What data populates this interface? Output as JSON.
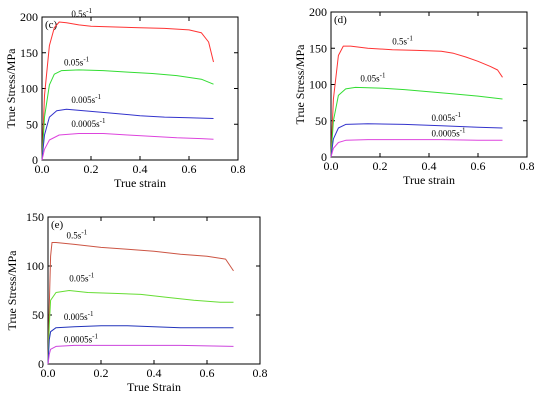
{
  "chart_data": [
    {
      "panel_label": "(c)",
      "type": "line",
      "xlabel": "True strain",
      "ylabel": "True Stress/MPa",
      "xlim": [
        0,
        0.8
      ],
      "ylim": [
        0,
        200
      ],
      "xticks": [
        0.0,
        0.2,
        0.4,
        0.6,
        0.8
      ],
      "yticks": [
        0,
        50,
        100,
        150,
        200
      ],
      "xtick_labels": [
        "0.0",
        "0.2",
        "0.4",
        "0.6",
        "0.8"
      ],
      "ytick_labels": [
        "0",
        "50",
        "100",
        "150",
        "200"
      ],
      "series": [
        {
          "name": "0.5s-1",
          "label_text": "0.5s",
          "label_sup": "-1",
          "label_at": [
            0.12,
            200
          ],
          "color": "#ff3333",
          "points": [
            [
              0.0,
              0
            ],
            [
              0.01,
              90
            ],
            [
              0.03,
              160
            ],
            [
              0.05,
              185
            ],
            [
              0.07,
              193
            ],
            [
              0.1,
              192
            ],
            [
              0.15,
              189
            ],
            [
              0.2,
              187
            ],
            [
              0.3,
              186
            ],
            [
              0.4,
              185
            ],
            [
              0.5,
              184
            ],
            [
              0.6,
              182
            ],
            [
              0.65,
              178
            ],
            [
              0.68,
              165
            ],
            [
              0.7,
              137
            ]
          ]
        },
        {
          "name": "0.05s-1",
          "label_text": "0.05s",
          "label_sup": "-1",
          "label_at": [
            0.09,
            132
          ],
          "color": "#33dd33",
          "points": [
            [
              0.0,
              0
            ],
            [
              0.01,
              60
            ],
            [
              0.03,
              105
            ],
            [
              0.05,
              120
            ],
            [
              0.08,
              125
            ],
            [
              0.15,
              126
            ],
            [
              0.25,
              125
            ],
            [
              0.35,
              123
            ],
            [
              0.45,
              121
            ],
            [
              0.55,
              118
            ],
            [
              0.65,
              113
            ],
            [
              0.7,
              106
            ]
          ]
        },
        {
          "name": "0.005s-1",
          "label_text": "0.005s",
          "label_sup": "-1",
          "label_at": [
            0.12,
            80
          ],
          "color": "#3333cc",
          "points": [
            [
              0.0,
              0
            ],
            [
              0.01,
              35
            ],
            [
              0.03,
              60
            ],
            [
              0.06,
              69
            ],
            [
              0.1,
              71
            ],
            [
              0.2,
              68
            ],
            [
              0.3,
              65
            ],
            [
              0.4,
              62
            ],
            [
              0.5,
              60
            ],
            [
              0.6,
              59
            ],
            [
              0.7,
              58
            ]
          ]
        },
        {
          "name": "0.0005s-1",
          "label_text": "0.0005s",
          "label_sup": "-1",
          "label_at": [
            0.12,
            46
          ],
          "color": "#dd44dd",
          "points": [
            [
              0.0,
              0
            ],
            [
              0.01,
              15
            ],
            [
              0.03,
              28
            ],
            [
              0.07,
              35
            ],
            [
              0.15,
              37
            ],
            [
              0.25,
              37
            ],
            [
              0.35,
              35
            ],
            [
              0.45,
              33
            ],
            [
              0.55,
              31
            ],
            [
              0.65,
              30
            ],
            [
              0.7,
              29
            ]
          ]
        }
      ]
    },
    {
      "panel_label": "(d)",
      "type": "line",
      "xlabel": "True strain",
      "ylabel": "True Stress/MPa",
      "xlim": [
        0,
        0.8
      ],
      "ylim": [
        0,
        200
      ],
      "xticks": [
        0.0,
        0.2,
        0.4,
        0.6,
        0.8
      ],
      "yticks": [
        0,
        50,
        100,
        150,
        200
      ],
      "xtick_labels": [
        "0.0",
        "0.2",
        "0.4",
        "0.6",
        "0.8"
      ],
      "ytick_labels": [
        "0",
        "50",
        "100",
        "150",
        "200"
      ],
      "series": [
        {
          "name": "0.5s-1",
          "label_text": "0.5s",
          "label_sup": "-1",
          "label_at": [
            0.25,
            155
          ],
          "color": "#ff3333",
          "points": [
            [
              0.0,
              0
            ],
            [
              0.01,
              80
            ],
            [
              0.03,
              140
            ],
            [
              0.05,
              153
            ],
            [
              0.08,
              153
            ],
            [
              0.15,
              150
            ],
            [
              0.25,
              148
            ],
            [
              0.35,
              147
            ],
            [
              0.45,
              146
            ],
            [
              0.5,
              143
            ],
            [
              0.55,
              138
            ],
            [
              0.6,
              132
            ],
            [
              0.65,
              125
            ],
            [
              0.68,
              120
            ],
            [
              0.7,
              110
            ]
          ]
        },
        {
          "name": "0.05s-1",
          "label_text": "0.05s",
          "label_sup": "-1",
          "label_at": [
            0.12,
            104
          ],
          "color": "#33dd33",
          "points": [
            [
              0.0,
              0
            ],
            [
              0.01,
              50
            ],
            [
              0.03,
              85
            ],
            [
              0.06,
              94
            ],
            [
              0.1,
              96
            ],
            [
              0.2,
              95
            ],
            [
              0.3,
              93
            ],
            [
              0.4,
              90
            ],
            [
              0.5,
              87
            ],
            [
              0.6,
              84
            ],
            [
              0.7,
              80
            ]
          ]
        },
        {
          "name": "0.005s-1",
          "label_text": "0.005s",
          "label_sup": "-1",
          "label_at": [
            0.41,
            50
          ],
          "color": "#3333cc",
          "points": [
            [
              0.0,
              0
            ],
            [
              0.01,
              25
            ],
            [
              0.03,
              40
            ],
            [
              0.06,
              45
            ],
            [
              0.15,
              46
            ],
            [
              0.3,
              45
            ],
            [
              0.45,
              43
            ],
            [
              0.6,
              41
            ],
            [
              0.7,
              40
            ]
          ]
        },
        {
          "name": "0.0005s-1",
          "label_text": "0.0005s",
          "label_sup": "-1",
          "label_at": [
            0.41,
            28
          ],
          "color": "#dd44dd",
          "points": [
            [
              0.0,
              0
            ],
            [
              0.01,
              12
            ],
            [
              0.03,
              20
            ],
            [
              0.06,
              23
            ],
            [
              0.15,
              24
            ],
            [
              0.3,
              24
            ],
            [
              0.45,
              24
            ],
            [
              0.6,
              23
            ],
            [
              0.7,
              23
            ]
          ]
        }
      ]
    },
    {
      "panel_label": "(e)",
      "type": "line",
      "xlabel": "True Strain",
      "ylabel": "True Stress/MPa",
      "xlim": [
        0,
        0.8
      ],
      "ylim": [
        0,
        150
      ],
      "xticks": [
        0.0,
        0.2,
        0.4,
        0.6,
        0.8
      ],
      "yticks": [
        0,
        50,
        100,
        150
      ],
      "xtick_labels": [
        "0.0",
        "0.2",
        "0.4",
        "0.6",
        "0.8"
      ],
      "ytick_labels": [
        "0",
        "50",
        "100",
        "150"
      ],
      "series": [
        {
          "name": "0.5s-1",
          "label_text": "0.5s",
          "label_sup": "-1",
          "label_at": [
            0.07,
            128
          ],
          "color": "#cc5544",
          "points": [
            [
              0.0,
              0
            ],
            [
              0.005,
              60
            ],
            [
              0.01,
              110
            ],
            [
              0.015,
              124
            ],
            [
              0.03,
              124
            ],
            [
              0.1,
              122
            ],
            [
              0.2,
              119
            ],
            [
              0.3,
              117
            ],
            [
              0.4,
              115
            ],
            [
              0.5,
              112
            ],
            [
              0.6,
              110
            ],
            [
              0.67,
              107
            ],
            [
              0.7,
              95
            ]
          ]
        },
        {
          "name": "0.05s-1",
          "label_text": "0.05s",
          "label_sup": "-1",
          "label_at": [
            0.08,
            84
          ],
          "color": "#66dd33",
          "points": [
            [
              0.0,
              0
            ],
            [
              0.005,
              40
            ],
            [
              0.01,
              65
            ],
            [
              0.03,
              73
            ],
            [
              0.08,
              75
            ],
            [
              0.15,
              73
            ],
            [
              0.25,
              72
            ],
            [
              0.35,
              71
            ],
            [
              0.45,
              68
            ],
            [
              0.55,
              65
            ],
            [
              0.65,
              63
            ],
            [
              0.7,
              63
            ]
          ]
        },
        {
          "name": "0.005s-1",
          "label_text": "0.005s",
          "label_sup": "-1",
          "label_at": [
            0.06,
            45
          ],
          "color": "#2233bb",
          "points": [
            [
              0.0,
              0
            ],
            [
              0.005,
              25
            ],
            [
              0.01,
              33
            ],
            [
              0.03,
              37
            ],
            [
              0.1,
              38
            ],
            [
              0.2,
              39
            ],
            [
              0.3,
              39
            ],
            [
              0.4,
              38
            ],
            [
              0.5,
              37
            ],
            [
              0.6,
              37
            ],
            [
              0.7,
              37
            ]
          ]
        },
        {
          "name": "0.0005s-1",
          "label_text": "0.0005s",
          "label_sup": "-1",
          "label_at": [
            0.06,
            22
          ],
          "color": "#cc44dd",
          "points": [
            [
              0.0,
              0
            ],
            [
              0.005,
              10
            ],
            [
              0.01,
              15
            ],
            [
              0.03,
              18
            ],
            [
              0.1,
              19
            ],
            [
              0.3,
              19
            ],
            [
              0.5,
              19
            ],
            [
              0.7,
              18
            ]
          ]
        }
      ]
    }
  ]
}
